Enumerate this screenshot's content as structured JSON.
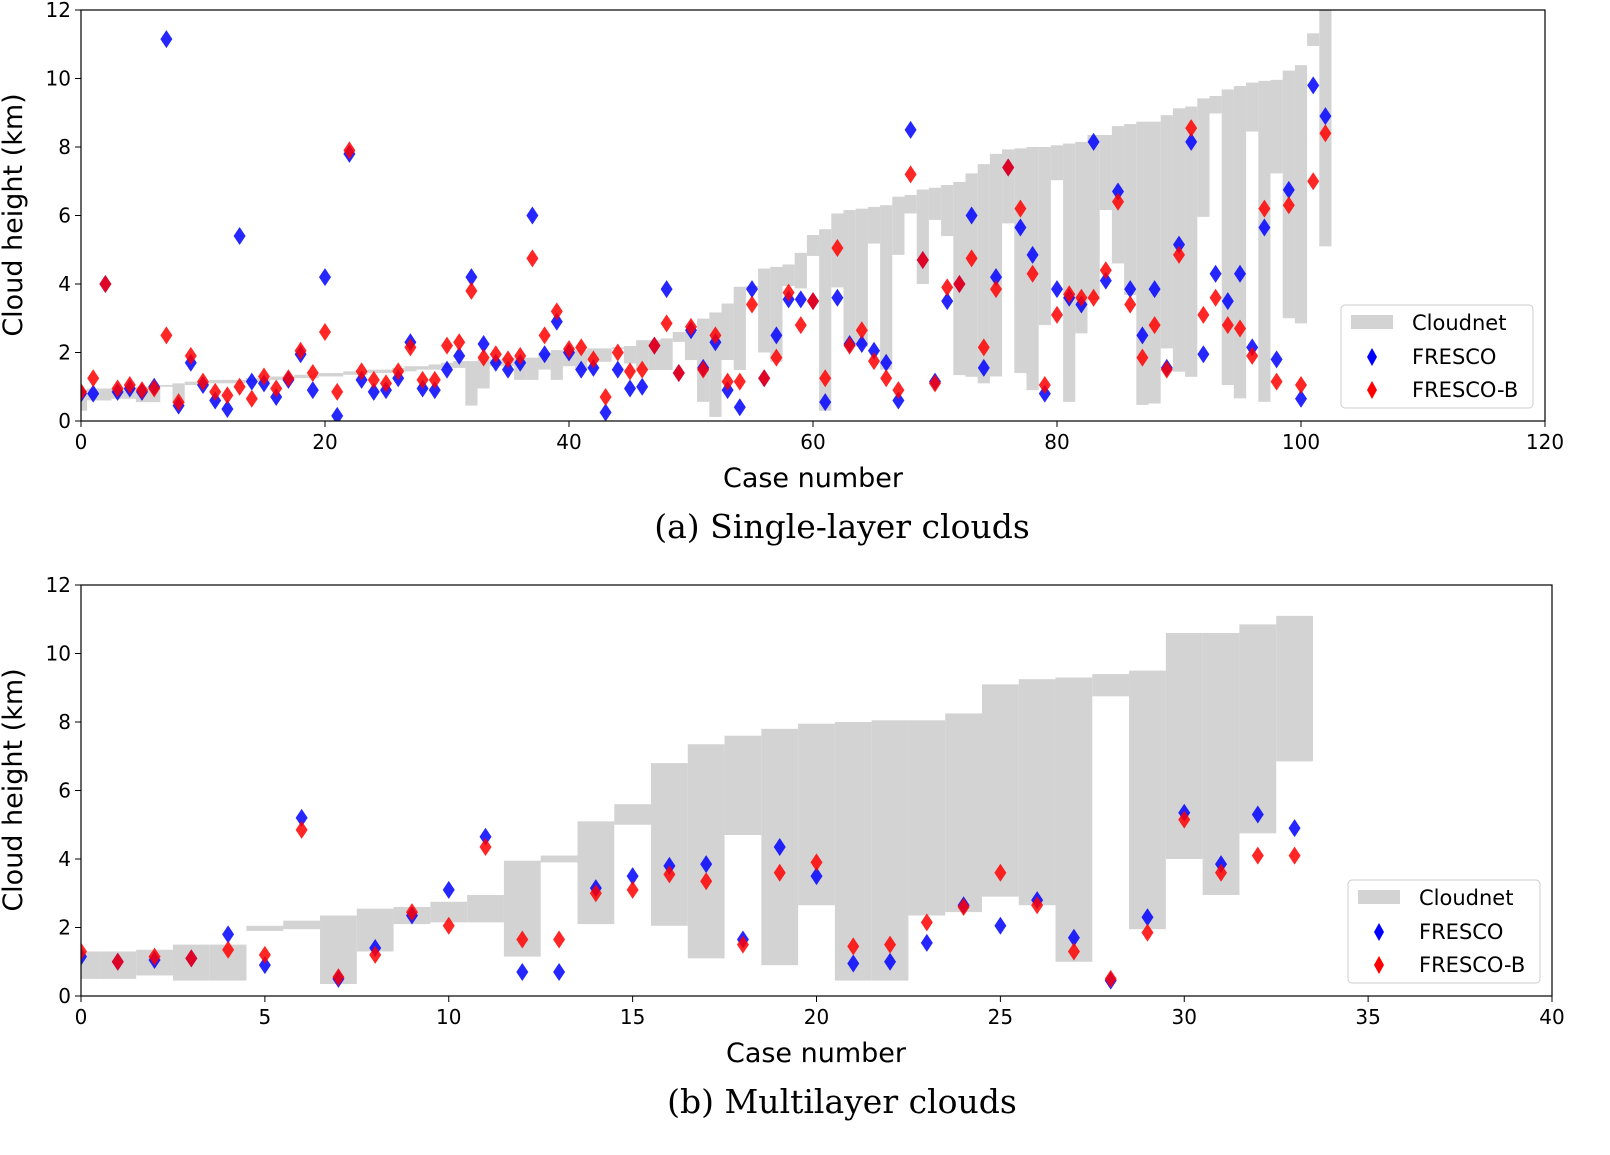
{
  "colors": {
    "cloudnet": "#d3d3d3",
    "fresco": "#0000ff",
    "fresco_b": "#ff0000"
  },
  "chart_data": [
    {
      "type": "scatter",
      "caption": "(a) Single-layer clouds",
      "xlabel": "Case number",
      "ylabel": "Cloud height (km)",
      "xlim": [
        0,
        120
      ],
      "ylim": [
        0,
        12
      ],
      "xticks": [
        0,
        20,
        40,
        60,
        80,
        100,
        120
      ],
      "yticks": [
        0,
        2,
        4,
        6,
        8,
        10,
        12
      ],
      "legend_position": "lower-right",
      "legend": [
        "Cloudnet",
        "FRESCO",
        "FRESCO-B"
      ],
      "cloudnet_low": [
        0.3,
        0.6,
        0.6,
        0.65,
        0.65,
        0.55,
        0.55,
        1.0,
        0.5,
        1.05,
        1.05,
        1.1,
        1.1,
        1.1,
        1.15,
        1.15,
        1.2,
        1.2,
        1.25,
        1.25,
        1.3,
        1.3,
        1.35,
        1.35,
        1.4,
        1.4,
        1.45,
        1.45,
        1.5,
        1.5,
        1.55,
        1.55,
        0.45,
        0.95,
        1.6,
        1.6,
        1.2,
        1.2,
        1.5,
        1.2,
        1.6,
        1.49,
        1.73,
        1.73,
        2.1,
        1.68,
        1.49,
        1.49,
        1.49,
        2.31,
        1.78,
        0.56,
        0.12,
        1.78,
        1.49,
        3.87,
        2.0,
        1.73,
        3.94,
        3.87,
        4.82,
        0.3,
        3.9,
        2.17,
        2.17,
        5.18,
        1.5,
        4.85,
        6.06,
        4.0,
        5.87,
        5.4,
        1.34,
        1.29,
        1.1,
        1.3,
        5.77,
        1.4,
        0.9,
        2.8,
        7.03,
        0.56,
        2.56,
        3.53,
        6.16,
        4.6,
        3.68,
        0.47,
        0.51,
        2.12,
        1.44,
        1.29,
        5.96,
        8.98,
        1.05,
        0.66,
        8.45,
        0.56,
        7.23,
        3.0,
        2.85,
        10.95,
        5.1
      ],
      "cloudnet_high": [
        0.9,
        0.95,
        0.95,
        0.95,
        0.95,
        1.0,
        1.0,
        1.05,
        1.1,
        1.15,
        1.15,
        1.2,
        1.2,
        1.2,
        1.25,
        1.25,
        1.3,
        1.3,
        1.35,
        1.35,
        1.4,
        1.4,
        1.45,
        1.45,
        1.5,
        1.5,
        1.55,
        1.6,
        1.6,
        1.65,
        1.7,
        1.75,
        1.75,
        1.8,
        1.8,
        1.85,
        1.85,
        1.85,
        2.0,
        2.07,
        2.05,
        2.07,
        2.12,
        2.12,
        2.15,
        2.19,
        2.36,
        2.36,
        2.41,
        2.6,
        2.6,
        2.99,
        3.17,
        3.43,
        3.92,
        3.94,
        4.45,
        4.5,
        4.57,
        4.91,
        5.43,
        5.6,
        6.06,
        6.16,
        6.2,
        6.25,
        6.3,
        6.55,
        6.6,
        6.76,
        6.81,
        6.89,
        6.98,
        7.23,
        7.5,
        7.8,
        7.93,
        7.96,
        8.0,
        8.0,
        8.05,
        8.1,
        8.15,
        8.35,
        8.35,
        8.61,
        8.67,
        8.74,
        8.74,
        8.93,
        9.13,
        9.18,
        9.42,
        9.49,
        9.68,
        9.78,
        9.88,
        9.93,
        9.96,
        10.23,
        10.39,
        11.32,
        12.2
      ],
      "fresco": [
        0.8,
        0.8,
        4.0,
        0.85,
        0.95,
        0.85,
        1.0,
        11.15,
        0.45,
        1.7,
        1.05,
        0.6,
        0.35,
        5.4,
        1.15,
        1.1,
        0.7,
        1.2,
        1.95,
        0.9,
        4.2,
        0.15,
        7.8,
        1.2,
        0.85,
        0.9,
        1.25,
        2.3,
        0.95,
        0.9,
        1.5,
        1.9,
        4.2,
        2.25,
        1.7,
        1.5,
        1.7,
        6.0,
        1.95,
        2.9,
        2.0,
        1.5,
        1.55,
        0.25,
        1.5,
        0.95,
        1.0,
        2.2,
        3.85,
        1.4,
        2.65,
        1.55,
        2.3,
        0.9,
        0.4,
        3.85,
        1.25,
        2.5,
        3.55,
        3.55,
        3.5,
        0.55,
        3.6,
        2.25,
        2.25,
        2.05,
        1.7,
        0.6,
        8.5,
        4.7,
        1.15,
        3.5,
        4.0,
        6.0,
        1.55,
        4.2,
        7.4,
        5.65,
        4.85,
        0.8,
        3.85,
        3.6,
        3.4,
        8.15,
        4.1,
        6.7,
        3.85,
        2.5,
        3.85,
        1.55,
        5.15,
        8.15,
        1.95,
        4.3,
        3.5,
        4.3,
        2.15,
        5.65,
        1.8,
        6.75,
        0.65,
        9.8,
        8.9
      ],
      "fresco_b": [
        0.85,
        1.25,
        4.0,
        0.95,
        1.05,
        0.9,
        0.95,
        2.5,
        0.55,
        1.9,
        1.15,
        0.85,
        0.75,
        1.0,
        0.65,
        1.3,
        0.95,
        1.25,
        2.05,
        1.4,
        2.6,
        0.85,
        7.9,
        1.45,
        1.2,
        1.1,
        1.45,
        2.15,
        1.2,
        1.2,
        2.2,
        2.3,
        3.8,
        1.85,
        1.95,
        1.8,
        1.9,
        4.75,
        2.5,
        3.2,
        2.1,
        2.15,
        1.8,
        0.7,
        2.0,
        1.45,
        1.5,
        2.2,
        2.85,
        1.4,
        2.75,
        1.5,
        2.5,
        1.15,
        1.15,
        3.4,
        1.25,
        1.85,
        3.75,
        2.8,
        3.5,
        1.25,
        5.05,
        2.2,
        2.65,
        1.75,
        1.25,
        0.9,
        7.2,
        4.7,
        1.1,
        3.9,
        4.0,
        4.75,
        2.15,
        3.85,
        7.4,
        6.2,
        4.3,
        1.05,
        3.1,
        3.7,
        3.6,
        3.6,
        4.4,
        6.4,
        3.4,
        1.85,
        2.8,
        1.5,
        4.85,
        8.55,
        3.1,
        3.6,
        2.8,
        2.7,
        1.9,
        6.2,
        1.15,
        6.3,
        1.05,
        7.0,
        8.4
      ]
    },
    {
      "type": "scatter",
      "caption": "(b) Multilayer clouds",
      "xlabel": "Case number",
      "ylabel": "Cloud height (km)",
      "xlim": [
        0,
        40
      ],
      "ylim": [
        0,
        12
      ],
      "xticks": [
        0,
        5,
        10,
        15,
        20,
        25,
        30,
        35,
        40
      ],
      "yticks": [
        0,
        2,
        4,
        6,
        8,
        10,
        12
      ],
      "legend_position": "lower-right",
      "legend": [
        "Cloudnet",
        "FRESCO",
        "FRESCO-B"
      ],
      "cloudnet_low": [
        0.5,
        0.5,
        0.6,
        0.45,
        0.45,
        1.9,
        1.95,
        0.35,
        1.3,
        2.1,
        2.15,
        2.15,
        1.15,
        3.9,
        2.1,
        5.0,
        2.05,
        1.1,
        4.7,
        0.9,
        2.65,
        0.45,
        0.45,
        2.35,
        2.45,
        2.9,
        2.65,
        1.0,
        8.75,
        1.95,
        4.0,
        2.95,
        4.75,
        6.85
      ],
      "cloudnet_high": [
        1.3,
        1.3,
        1.35,
        1.5,
        1.5,
        2.05,
        2.2,
        2.35,
        2.55,
        2.6,
        2.75,
        2.95,
        3.95,
        4.1,
        5.1,
        5.6,
        6.8,
        7.35,
        7.6,
        7.8,
        7.95,
        8.0,
        8.05,
        8.05,
        8.25,
        9.1,
        9.25,
        9.3,
        9.4,
        9.5,
        10.6,
        10.6,
        10.85,
        11.1
      ],
      "fresco": [
        1.15,
        1.0,
        1.05,
        1.1,
        1.8,
        0.9,
        5.2,
        0.5,
        1.4,
        2.35,
        3.1,
        4.65,
        0.7,
        0.7,
        3.15,
        3.5,
        3.8,
        3.85,
        1.65,
        4.35,
        3.5,
        0.95,
        1.0,
        1.55,
        2.65,
        2.05,
        2.8,
        1.7,
        0.45,
        2.3,
        5.35,
        3.85,
        5.3,
        4.9
      ],
      "fresco_b": [
        1.3,
        1.0,
        1.15,
        1.1,
        1.35,
        1.2,
        4.85,
        0.55,
        1.2,
        2.45,
        2.05,
        4.35,
        1.65,
        1.65,
        3.0,
        3.1,
        3.55,
        3.35,
        1.5,
        3.6,
        3.9,
        1.45,
        1.5,
        2.15,
        2.6,
        3.6,
        2.65,
        1.3,
        0.5,
        1.85,
        5.15,
        3.6,
        4.1,
        4.1
      ]
    }
  ]
}
